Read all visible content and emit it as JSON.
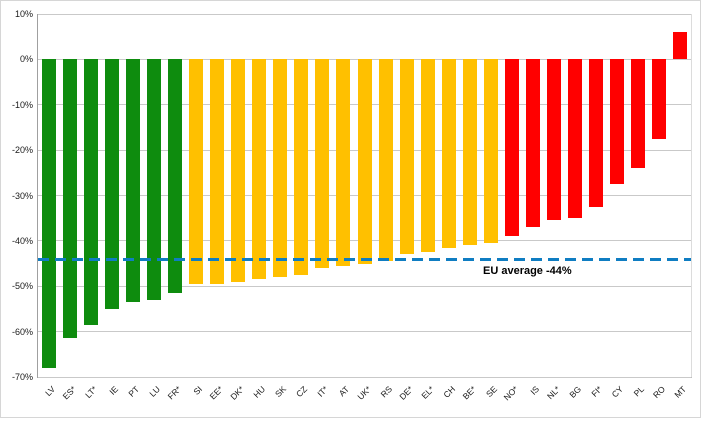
{
  "chart_data": {
    "type": "bar",
    "title": "",
    "xlabel": "",
    "ylabel": "",
    "ylim": [
      -70,
      10
    ],
    "grid": true,
    "legend": "none",
    "yticks": [
      10,
      0,
      -10,
      -20,
      -30,
      -40,
      -50,
      -60,
      -70
    ],
    "ytick_labels": [
      "10%",
      "0%",
      "-10%",
      "-20%",
      "-30%",
      "-40%",
      "-50%",
      "-60%",
      "-70%"
    ],
    "palette": {
      "green": "#0e8c0e",
      "yellow": "#ffc000",
      "red": "#ff0000"
    },
    "average_line": {
      "value": -44,
      "label": "EU average -44%",
      "color": "#0f7dc2",
      "style": "dashed"
    },
    "points": [
      {
        "label": "LV",
        "value": -68,
        "color": "green"
      },
      {
        "label": "ES*",
        "value": -61.5,
        "color": "green"
      },
      {
        "label": "LT*",
        "value": -58.5,
        "color": "green"
      },
      {
        "label": "IE",
        "value": -55,
        "color": "green"
      },
      {
        "label": "PT",
        "value": -53.5,
        "color": "green"
      },
      {
        "label": "LU",
        "value": -53,
        "color": "green"
      },
      {
        "label": "FR*",
        "value": -51.5,
        "color": "green"
      },
      {
        "label": "SI",
        "value": -49.5,
        "color": "yellow"
      },
      {
        "label": "EE*",
        "value": -49.5,
        "color": "yellow"
      },
      {
        "label": "DK*",
        "value": -49,
        "color": "yellow"
      },
      {
        "label": "HU",
        "value": -48.5,
        "color": "yellow"
      },
      {
        "label": "SK",
        "value": -48,
        "color": "yellow"
      },
      {
        "label": "CZ",
        "value": -47.5,
        "color": "yellow"
      },
      {
        "label": "IT*",
        "value": -46,
        "color": "yellow"
      },
      {
        "label": "AT",
        "value": -45.5,
        "color": "yellow"
      },
      {
        "label": "UK*",
        "value": -45,
        "color": "yellow"
      },
      {
        "label": "RS",
        "value": -44.5,
        "color": "yellow"
      },
      {
        "label": "DE*",
        "value": -43,
        "color": "yellow"
      },
      {
        "label": "EL*",
        "value": -42.5,
        "color": "yellow"
      },
      {
        "label": "CH",
        "value": -41.5,
        "color": "yellow"
      },
      {
        "label": "BE*",
        "value": -41,
        "color": "yellow"
      },
      {
        "label": "SE",
        "value": -40.5,
        "color": "yellow"
      },
      {
        "label": "NO*",
        "value": -39,
        "color": "red"
      },
      {
        "label": "IS",
        "value": -37,
        "color": "red"
      },
      {
        "label": "NL*",
        "value": -35.5,
        "color": "red"
      },
      {
        "label": "BG",
        "value": -35,
        "color": "red"
      },
      {
        "label": "FI*",
        "value": -32.5,
        "color": "red"
      },
      {
        "label": "CY",
        "value": -27.5,
        "color": "red"
      },
      {
        "label": "PL",
        "value": -24,
        "color": "red"
      },
      {
        "label": "RO",
        "value": -17.5,
        "color": "red"
      },
      {
        "label": "MT",
        "value": 6,
        "color": "red"
      }
    ]
  }
}
